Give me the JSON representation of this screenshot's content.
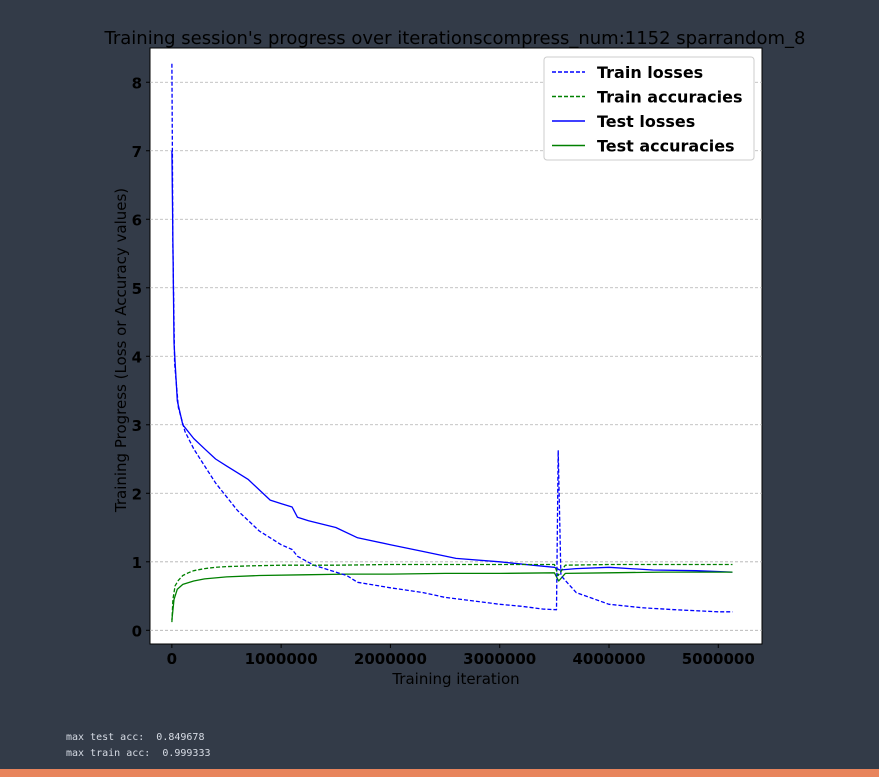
{
  "chart_data": {
    "type": "line",
    "title": "Training session's progress over iterationscompress_num:1152 sparrandom_8",
    "xlabel": "Training iteration",
    "ylabel": "Training Progress (Loss or Accuracy values)",
    "xlim": [
      -200000,
      5400000
    ],
    "ylim": [
      -0.2,
      8.5
    ],
    "xticks": [
      0,
      1000000,
      2000000,
      3000000,
      4000000,
      5000000
    ],
    "xtick_labels": [
      "0",
      "1000000",
      "2000000",
      "3000000",
      "4000000",
      "5000000"
    ],
    "yticks": [
      0,
      1,
      2,
      3,
      4,
      5,
      6,
      7,
      8
    ],
    "ytick_labels": [
      "0",
      "1",
      "2",
      "3",
      "4",
      "5",
      "6",
      "7",
      "8"
    ],
    "grid": true,
    "legend_placement": "top-right",
    "series": [
      {
        "name": "Train losses",
        "color": "#0000ff",
        "style": "dashed",
        "x": [
          0,
          10000,
          25000,
          60000,
          120000,
          200000,
          300000,
          400000,
          500000,
          600000,
          700000,
          800000,
          900000,
          1000000,
          1100000,
          1150000,
          1300000,
          1500000,
          1600000,
          1700000,
          2000000,
          2300000,
          2500000,
          2800000,
          3000000,
          3200000,
          3400000,
          3520000,
          3535000,
          3560000,
          3700000,
          4000000,
          4300000,
          4600000,
          5000000,
          5130000
        ],
        "y": [
          8.27,
          5.6,
          3.9,
          3.25,
          2.9,
          2.65,
          2.4,
          2.15,
          1.95,
          1.75,
          1.6,
          1.45,
          1.35,
          1.25,
          1.18,
          1.08,
          0.95,
          0.85,
          0.8,
          0.7,
          0.62,
          0.55,
          0.48,
          0.42,
          0.38,
          0.35,
          0.31,
          0.3,
          2.62,
          0.8,
          0.55,
          0.38,
          0.33,
          0.3,
          0.27,
          0.27
        ]
      },
      {
        "name": "Train accuracies",
        "color": "#008000",
        "style": "dashed",
        "x": [
          0,
          10000,
          30000,
          60000,
          100000,
          150000,
          200000,
          300000,
          400000,
          500000,
          700000,
          1000000,
          1500000,
          2000000,
          2500000,
          3000000,
          3500000,
          3535000,
          3600000,
          4000000,
          4500000,
          5000000,
          5130000
        ],
        "y": [
          0.12,
          0.45,
          0.65,
          0.73,
          0.8,
          0.84,
          0.87,
          0.9,
          0.92,
          0.93,
          0.94,
          0.95,
          0.95,
          0.96,
          0.96,
          0.96,
          0.96,
          0.8,
          0.95,
          0.96,
          0.96,
          0.96,
          0.96
        ]
      },
      {
        "name": "Test losses",
        "color": "#0000ff",
        "style": "solid",
        "x": [
          0,
          20000,
          50000,
          100000,
          200000,
          300000,
          400000,
          500000,
          600000,
          700000,
          800000,
          900000,
          1000000,
          1100000,
          1150000,
          1250000,
          1500000,
          1700000,
          2000000,
          2300000,
          2600000,
          3000000,
          3300000,
          3500000,
          3550000,
          3700000,
          4000000,
          4400000,
          4800000,
          5130000
        ],
        "y": [
          7.0,
          4.2,
          3.35,
          3.0,
          2.8,
          2.65,
          2.5,
          2.4,
          2.3,
          2.2,
          2.05,
          1.9,
          1.85,
          1.8,
          1.65,
          1.6,
          1.5,
          1.35,
          1.25,
          1.15,
          1.05,
          1.0,
          0.95,
          0.92,
          0.88,
          0.9,
          0.92,
          0.88,
          0.87,
          0.85
        ]
      },
      {
        "name": "Test accuracies",
        "color": "#008000",
        "style": "solid",
        "x": [
          0,
          20000,
          50000,
          100000,
          200000,
          300000,
          500000,
          800000,
          1200000,
          1600000,
          2000000,
          2500000,
          3000000,
          3500000,
          3540000,
          3600000,
          4000000,
          4500000,
          5000000,
          5130000
        ],
        "y": [
          0.15,
          0.45,
          0.6,
          0.67,
          0.72,
          0.75,
          0.78,
          0.8,
          0.81,
          0.82,
          0.82,
          0.83,
          0.83,
          0.84,
          0.72,
          0.83,
          0.84,
          0.85,
          0.85,
          0.85
        ]
      }
    ]
  },
  "stats": {
    "max_test_acc": "max test acc:  0.849678",
    "max_train_acc": "max train acc:  0.999333"
  },
  "colors": {
    "page_background": "#333b48",
    "plot_background": "#ffffff",
    "grid": "#b0b0b0",
    "bottom_bar": "#e8845c"
  }
}
